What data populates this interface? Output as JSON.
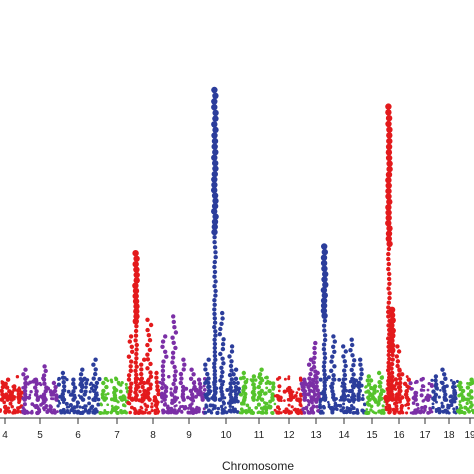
{
  "chart_data": {
    "type": "scatter",
    "subtype": "manhattan",
    "xlabel": "Chromosome",
    "ylabel": "",
    "title": "",
    "grid": false,
    "legend": "none",
    "ylim": [
      0,
      10
    ],
    "visible_chromosomes": [
      "4",
      "5",
      "6",
      "7",
      "8",
      "9",
      "10",
      "11",
      "12",
      "13",
      "14",
      "15",
      "16",
      "17",
      "18",
      "19"
    ],
    "colors": {
      "red": "#e31a1c",
      "purple": "#7b2fa6",
      "blue": "#2b3d9b",
      "green": "#55c32b"
    },
    "chromosomes": [
      {
        "label": "4",
        "color": "red",
        "peaks": [
          0.9,
          1.0,
          0.8,
          0.7
        ]
      },
      {
        "label": "5",
        "color": "purple",
        "peaks": [
          1.3,
          1.0,
          1.4,
          0.9
        ]
      },
      {
        "label": "6",
        "color": "blue",
        "peaks": [
          1.2,
          1.0,
          1.3,
          1.6
        ]
      },
      {
        "label": "7",
        "color": "green",
        "peaks": [
          0.9,
          0.7,
          0.5
        ]
      },
      {
        "label": "8",
        "color": "red",
        "peaks": [
          2.3,
          4.8,
          1.6,
          2.8,
          1.2
        ]
      },
      {
        "label": "9",
        "color": "purple",
        "peaks": [
          2.3,
          2.9,
          1.6,
          1.3,
          1.0
        ]
      },
      {
        "label": "10",
        "color": "blue",
        "peaks": [
          1.6,
          9.7,
          3.0,
          2.0,
          1.3
        ]
      },
      {
        "label": "11",
        "color": "green",
        "peaks": [
          1.2,
          1.1,
          1.3,
          0.9
        ]
      },
      {
        "label": "12",
        "color": "red",
        "peaks": [
          0.5,
          0.6,
          0.4
        ]
      },
      {
        "label": "13",
        "color": "purple",
        "peaks": [
          1.0,
          1.6,
          2.1,
          1.2
        ]
      },
      {
        "label": "14",
        "color": "blue",
        "peaks": [
          5.0,
          2.3,
          2.0,
          2.2,
          1.6
        ]
      },
      {
        "label": "15",
        "color": "green",
        "peaks": [
          1.1,
          0.8,
          1.2
        ]
      },
      {
        "label": "16",
        "color": "red",
        "peaks": [
          9.2,
          3.1,
          2.0,
          1.3,
          1.0
        ]
      },
      {
        "label": "17",
        "color": "purple",
        "peaks": [
          0.6,
          0.5
        ]
      },
      {
        "label": "18",
        "color": "blue",
        "peaks": [
          1.1,
          1.3,
          0.9
        ]
      },
      {
        "label": "19",
        "color": "green",
        "peaks": [
          0.9,
          1.0
        ]
      }
    ]
  }
}
